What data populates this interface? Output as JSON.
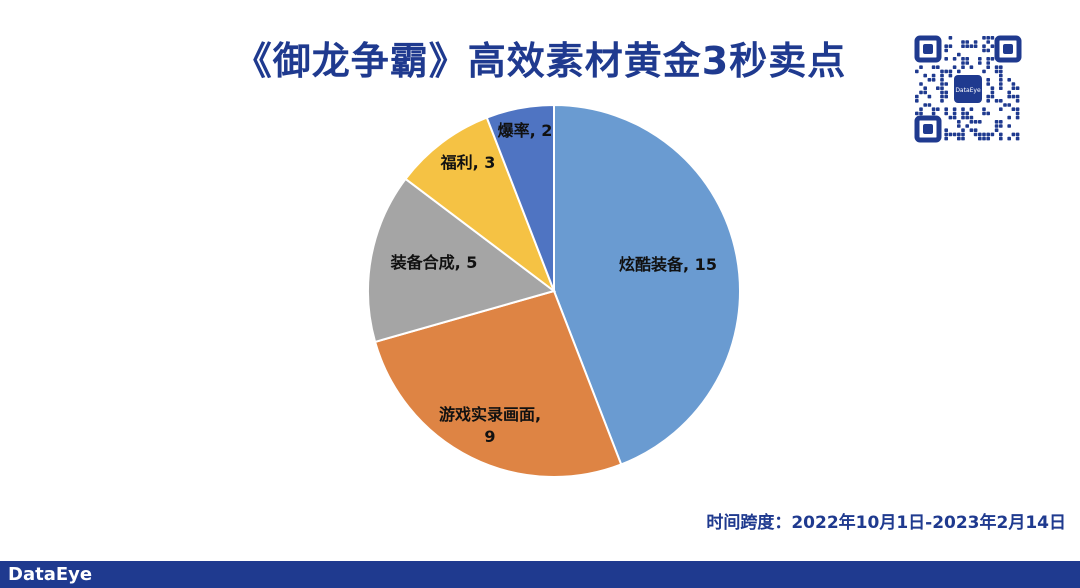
{
  "page": {
    "title": "《御龙争霸》高效素材黄金3秒卖点",
    "date_range": "时间跨度：2022年10月1日-2023年2月14日",
    "brand": "DataEye",
    "qr_badge": "DataEye"
  },
  "chart_data": {
    "type": "pie",
    "title": "《御龙争霸》高效素材黄金3秒卖点",
    "slices": [
      {
        "label": "炫酷装备, 15",
        "name": "炫酷装备",
        "value": 15,
        "color": "#6a9bd1"
      },
      {
        "label": "游戏实录画面, 9",
        "name": "游戏实录画面",
        "value": 9,
        "color": "#de8444"
      },
      {
        "label": "装备合成, 5",
        "name": "装备合成",
        "value": 5,
        "color": "#a5a5a5"
      },
      {
        "label": "福利, 3",
        "name": "福利",
        "value": 3,
        "color": "#f5c244"
      },
      {
        "label": "爆率, 2",
        "name": "爆率",
        "value": 2,
        "color": "#4f74c2"
      }
    ],
    "start": "12 o'clock",
    "direction": "clockwise"
  }
}
